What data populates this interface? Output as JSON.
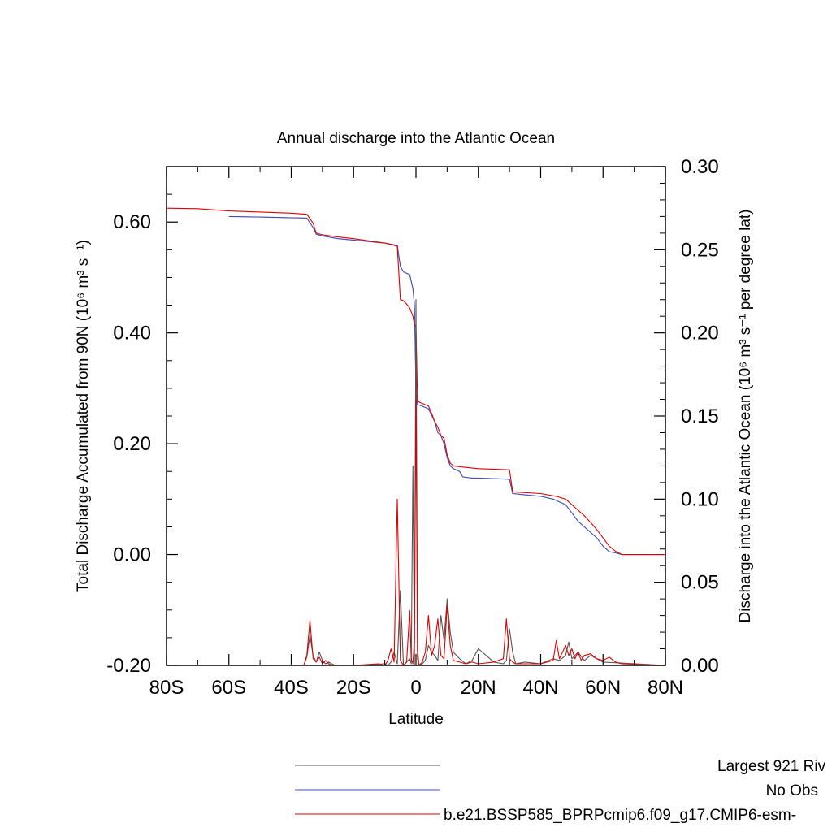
{
  "chart_data": {
    "type": "line",
    "title": "Annual discharge into the Atlantic Ocean",
    "xlabel": "Latitude",
    "ylabel_left": "Total Discharge Accumulated from 90N (10⁶ m³ s⁻¹)",
    "ylabel_right": "Discharge into the Atlantic Ocean (10⁶ m³ s⁻¹ per degree lat)",
    "xlim": [
      -80,
      80
    ],
    "ylim_left": [
      -0.2,
      0.7
    ],
    "ylim_right": [
      0.0,
      0.3
    ],
    "x_ticks": [
      -80,
      -60,
      -40,
      -20,
      0,
      20,
      40,
      60,
      80
    ],
    "x_tick_labels": [
      "80S",
      "60S",
      "40S",
      "20S",
      "0",
      "20N",
      "40N",
      "60N",
      "80N"
    ],
    "y_left_ticks": [
      -0.2,
      0.0,
      0.2,
      0.4,
      0.6
    ],
    "y_left_tick_labels": [
      "-0.20",
      "0.00",
      "0.20",
      "0.40",
      "0.60"
    ],
    "y_right_ticks": [
      0.0,
      0.05,
      0.1,
      0.15,
      0.2,
      0.25,
      0.3
    ],
    "y_right_tick_labels": [
      "0.00",
      "0.05",
      "0.10",
      "0.15",
      "0.20",
      "0.25",
      "0.30"
    ],
    "grid": false,
    "legend_position": "bottom",
    "series": [
      {
        "name": "Largest 921 Riv",
        "color": "#555555",
        "axis": "left",
        "x": [
          -60,
          -50,
          -35,
          -33,
          -32,
          -30,
          -25,
          -10,
          -6,
          -5,
          -4,
          -2,
          -1,
          -0.5,
          0,
          0.5,
          1,
          4,
          6,
          7,
          8,
          9,
          10,
          11,
          12,
          14,
          15,
          18,
          20,
          30,
          31,
          40,
          44,
          48,
          50,
          52,
          54,
          56,
          58,
          60,
          62,
          64,
          66,
          80
        ],
        "y": [
          0.61,
          0.609,
          0.607,
          0.59,
          0.578,
          0.575,
          0.57,
          0.562,
          0.558,
          0.52,
          0.51,
          0.505,
          0.48,
          0.45,
          0.3,
          0.27,
          0.27,
          0.263,
          0.24,
          0.22,
          0.215,
          0.2,
          0.175,
          0.16,
          0.155,
          0.15,
          0.14,
          0.138,
          0.138,
          0.136,
          0.11,
          0.105,
          0.1,
          0.09,
          0.075,
          0.06,
          0.05,
          0.04,
          0.03,
          0.015,
          0.005,
          0.003,
          0.0,
          0.0
        ]
      },
      {
        "name": "No Obs",
        "color": "#3a4fe0",
        "axis": "left",
        "x": [
          -60,
          -50,
          -35,
          -33,
          -32,
          -30,
          -25,
          -10,
          -6,
          -5,
          -4,
          -2,
          -1,
          -0.5,
          0,
          0.5,
          1,
          4,
          6,
          7,
          8,
          9,
          10,
          11,
          12,
          14,
          15,
          18,
          20,
          30,
          31,
          40,
          44,
          48,
          50,
          52,
          54,
          56,
          58,
          60,
          62,
          64,
          66,
          80
        ],
        "y": [
          0.61,
          0.609,
          0.607,
          0.59,
          0.578,
          0.575,
          0.57,
          0.562,
          0.558,
          0.52,
          0.51,
          0.505,
          0.48,
          0.45,
          0.3,
          0.27,
          0.27,
          0.263,
          0.24,
          0.22,
          0.215,
          0.2,
          0.175,
          0.16,
          0.155,
          0.15,
          0.14,
          0.138,
          0.138,
          0.136,
          0.11,
          0.105,
          0.1,
          0.09,
          0.075,
          0.06,
          0.05,
          0.04,
          0.03,
          0.015,
          0.005,
          0.003,
          0.0,
          0.0
        ]
      },
      {
        "name": "b.e21.BSSP585_BPRPcmip6.f09_g17.CMIP6-esm-",
        "color": "#e00000",
        "axis": "left",
        "x": [
          -80,
          -70,
          -60,
          -50,
          -40,
          -35,
          -33,
          -32,
          -30,
          -25,
          -20,
          -15,
          -10,
          -7,
          -6,
          -5,
          -4,
          -3,
          -2,
          -1,
          -0.5,
          0,
          0.5,
          1,
          4,
          5,
          6,
          7,
          8,
          9,
          10,
          11,
          12,
          15,
          20,
          30,
          31,
          40,
          45,
          48,
          50,
          52,
          54,
          56,
          58,
          60,
          62,
          64,
          66,
          80
        ],
        "y": [
          0.625,
          0.624,
          0.62,
          0.618,
          0.616,
          0.614,
          0.598,
          0.58,
          0.577,
          0.573,
          0.57,
          0.566,
          0.562,
          0.558,
          0.556,
          0.46,
          0.458,
          0.452,
          0.445,
          0.43,
          0.415,
          0.41,
          0.28,
          0.275,
          0.268,
          0.255,
          0.24,
          0.23,
          0.215,
          0.21,
          0.18,
          0.165,
          0.16,
          0.158,
          0.155,
          0.153,
          0.113,
          0.11,
          0.105,
          0.1,
          0.09,
          0.08,
          0.07,
          0.058,
          0.045,
          0.03,
          0.015,
          0.006,
          0.0,
          0.0
        ]
      },
      {
        "name": "Largest 921 Riv (per degree)",
        "color": "#555555",
        "axis": "right",
        "x": [
          -80,
          -36,
          -35,
          -34,
          -33,
          -32,
          -31,
          -30,
          -29,
          -28,
          -27,
          -26,
          -20,
          -10,
          -9,
          -8,
          -7,
          -6,
          -5,
          -4,
          -3,
          -2,
          -1.5,
          -1,
          -0.5,
          0,
          0.5,
          1,
          2,
          3,
          4,
          5,
          6,
          7,
          8,
          9,
          10,
          11,
          12,
          14,
          16,
          18,
          20,
          25,
          28,
          29,
          30,
          31,
          32,
          35,
          40,
          44,
          46,
          48,
          49,
          50,
          52,
          54,
          56,
          58,
          60,
          80
        ],
        "y": [
          0.0,
          0.0,
          0.005,
          0.018,
          0.006,
          0.002,
          0.008,
          0.003,
          0.001,
          0.002,
          0.001,
          0.0,
          0.0,
          0.001,
          0.0,
          0.002,
          0.008,
          0.001,
          0.045,
          0.0,
          0.002,
          0.004,
          0.001,
          0.12,
          0.0,
          0.22,
          0.01,
          0.0,
          0.001,
          0.003,
          0.012,
          0.008,
          0.006,
          0.003,
          0.03,
          0.015,
          0.04,
          0.02,
          0.008,
          0.004,
          0.001,
          0.003,
          0.01,
          0.002,
          0.001,
          0.003,
          0.022,
          0.008,
          0.001,
          0.002,
          0.001,
          0.004,
          0.003,
          0.006,
          0.014,
          0.004,
          0.008,
          0.003,
          0.006,
          0.004,
          0.002,
          0.0
        ]
      },
      {
        "name": "b.e21.BSSP585_BPRPcmip6.f09_g17.CMIP6-esm- (per degree)",
        "color": "#e00000",
        "axis": "right",
        "x": [
          -80,
          -36,
          -35,
          -34,
          -33,
          -32,
          -31,
          -30,
          -29,
          -28,
          -27,
          -20,
          -12,
          -10,
          -9,
          -8,
          -7,
          -6,
          -5,
          -4,
          -3,
          -2,
          -1.5,
          -1,
          -0.5,
          0,
          0.5,
          1,
          2,
          3,
          4,
          5,
          6,
          7,
          8,
          9,
          10,
          11,
          12,
          14,
          16,
          18,
          20,
          25,
          28,
          29,
          30,
          31,
          32,
          40,
          44,
          45,
          46,
          47,
          48,
          49,
          50,
          51,
          52,
          53,
          54,
          56,
          58,
          60,
          62,
          64,
          66,
          80
        ],
        "y": [
          0.0,
          0.0,
          0.006,
          0.027,
          0.004,
          0.002,
          0.005,
          0.001,
          0.003,
          0.001,
          0.0,
          0.0,
          0.001,
          0.0,
          0.003,
          0.01,
          0.002,
          0.1,
          0.003,
          0.0,
          0.002,
          0.033,
          0.004,
          0.001,
          0.015,
          0.16,
          0.004,
          0.0,
          0.002,
          0.008,
          0.03,
          0.006,
          0.012,
          0.028,
          0.006,
          0.004,
          0.036,
          0.012,
          0.003,
          0.002,
          0.001,
          0.002,
          0.001,
          0.002,
          0.004,
          0.028,
          0.004,
          0.002,
          0.001,
          0.001,
          0.003,
          0.015,
          0.004,
          0.008,
          0.012,
          0.006,
          0.01,
          0.004,
          0.008,
          0.003,
          0.006,
          0.007,
          0.004,
          0.003,
          0.005,
          0.002,
          0.001,
          0.0
        ]
      }
    ],
    "legend_entries": [
      {
        "label": "Largest 921 Riv",
        "color": "#555555"
      },
      {
        "label": "No Obs",
        "color": "#3a4fe0"
      },
      {
        "label": "b.e21.BSSP585_BPRPcmip6.f09_g17.CMIP6-esm-",
        "color": "#e00000"
      }
    ]
  }
}
